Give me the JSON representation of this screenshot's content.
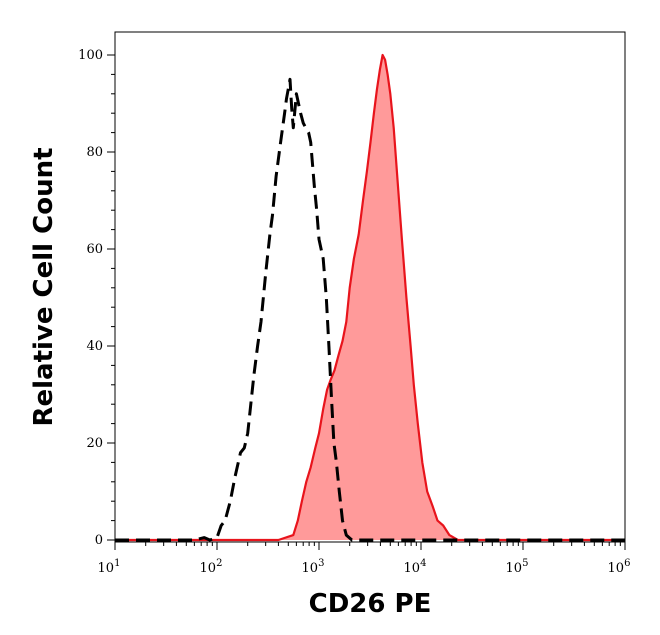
{
  "chart_data": {
    "type": "area",
    "title": "",
    "xlabel": "CD26 PE",
    "ylabel": "Relative Cell Count",
    "x_scale": "log",
    "xlim": [
      10,
      1000000
    ],
    "ylim": [
      0,
      100
    ],
    "x_ticks": [
      {
        "value": 10,
        "base": "10",
        "exp": "1"
      },
      {
        "value": 100,
        "base": "10",
        "exp": "2"
      },
      {
        "value": 1000,
        "base": "10",
        "exp": "3"
      },
      {
        "value": 10000,
        "base": "10",
        "exp": "4"
      },
      {
        "value": 100000,
        "base": "10",
        "exp": "5"
      },
      {
        "value": 1000000,
        "base": "10",
        "exp": "6"
      }
    ],
    "y_ticks": [
      {
        "value": 0,
        "label": "0"
      },
      {
        "value": 20,
        "label": "20"
      },
      {
        "value": 40,
        "label": "40"
      },
      {
        "value": 60,
        "label": "60"
      },
      {
        "value": 80,
        "label": "80"
      },
      {
        "value": 100,
        "label": "100"
      }
    ],
    "grid": false,
    "legend": "none",
    "series": [
      {
        "style": "dashed-line",
        "color": "#000000",
        "points": [
          [
            10,
            0
          ],
          [
            60,
            0
          ],
          [
            75,
            0.5
          ],
          [
            85,
            0
          ],
          [
            100,
            0.5
          ],
          [
            110,
            3
          ],
          [
            120,
            4
          ],
          [
            135,
            8
          ],
          [
            150,
            13
          ],
          [
            170,
            18
          ],
          [
            185,
            19
          ],
          [
            200,
            22
          ],
          [
            230,
            34
          ],
          [
            250,
            40
          ],
          [
            270,
            45
          ],
          [
            300,
            55
          ],
          [
            330,
            63
          ],
          [
            350,
            67
          ],
          [
            380,
            75
          ],
          [
            420,
            82
          ],
          [
            460,
            88
          ],
          [
            480,
            91
          ],
          [
            500,
            93
          ],
          [
            520,
            95
          ],
          [
            540,
            89
          ],
          [
            560,
            85
          ],
          [
            600,
            92
          ],
          [
            630,
            90
          ],
          [
            660,
            88
          ],
          [
            700,
            86
          ],
          [
            740,
            85
          ],
          [
            790,
            84
          ],
          [
            830,
            82
          ],
          [
            860,
            78
          ],
          [
            900,
            73
          ],
          [
            950,
            68
          ],
          [
            1000,
            62
          ],
          [
            1100,
            58
          ],
          [
            1180,
            50
          ],
          [
            1250,
            40
          ],
          [
            1320,
            30
          ],
          [
            1400,
            20
          ],
          [
            1480,
            16
          ],
          [
            1580,
            10
          ],
          [
            1700,
            4
          ],
          [
            1850,
            1
          ],
          [
            2100,
            0
          ],
          [
            1000000,
            0
          ]
        ]
      },
      {
        "style": "filled-area",
        "color": "#e8141c",
        "fill": "#ff9a9a",
        "points": [
          [
            10,
            0
          ],
          [
            400,
            0
          ],
          [
            560,
            1
          ],
          [
            620,
            4
          ],
          [
            680,
            8
          ],
          [
            750,
            12
          ],
          [
            830,
            15
          ],
          [
            920,
            19
          ],
          [
            1000,
            22
          ],
          [
            1100,
            27
          ],
          [
            1200,
            31
          ],
          [
            1300,
            33
          ],
          [
            1420,
            35
          ],
          [
            1550,
            38
          ],
          [
            1700,
            41
          ],
          [
            1850,
            45
          ],
          [
            2000,
            52
          ],
          [
            2200,
            58
          ],
          [
            2450,
            63
          ],
          [
            2700,
            70
          ],
          [
            2950,
            76
          ],
          [
            3200,
            82
          ],
          [
            3450,
            88
          ],
          [
            3700,
            93
          ],
          [
            3950,
            97
          ],
          [
            4200,
            100
          ],
          [
            4450,
            99
          ],
          [
            4700,
            96
          ],
          [
            5000,
            92
          ],
          [
            5400,
            85
          ],
          [
            5900,
            74
          ],
          [
            6500,
            62
          ],
          [
            7200,
            50
          ],
          [
            7900,
            40
          ],
          [
            8500,
            32
          ],
          [
            9300,
            24
          ],
          [
            10300,
            16
          ],
          [
            11500,
            10
          ],
          [
            13000,
            7
          ],
          [
            14500,
            4
          ],
          [
            16500,
            3
          ],
          [
            19000,
            1
          ],
          [
            23000,
            0
          ],
          [
            1000000,
            0
          ]
        ]
      }
    ]
  }
}
